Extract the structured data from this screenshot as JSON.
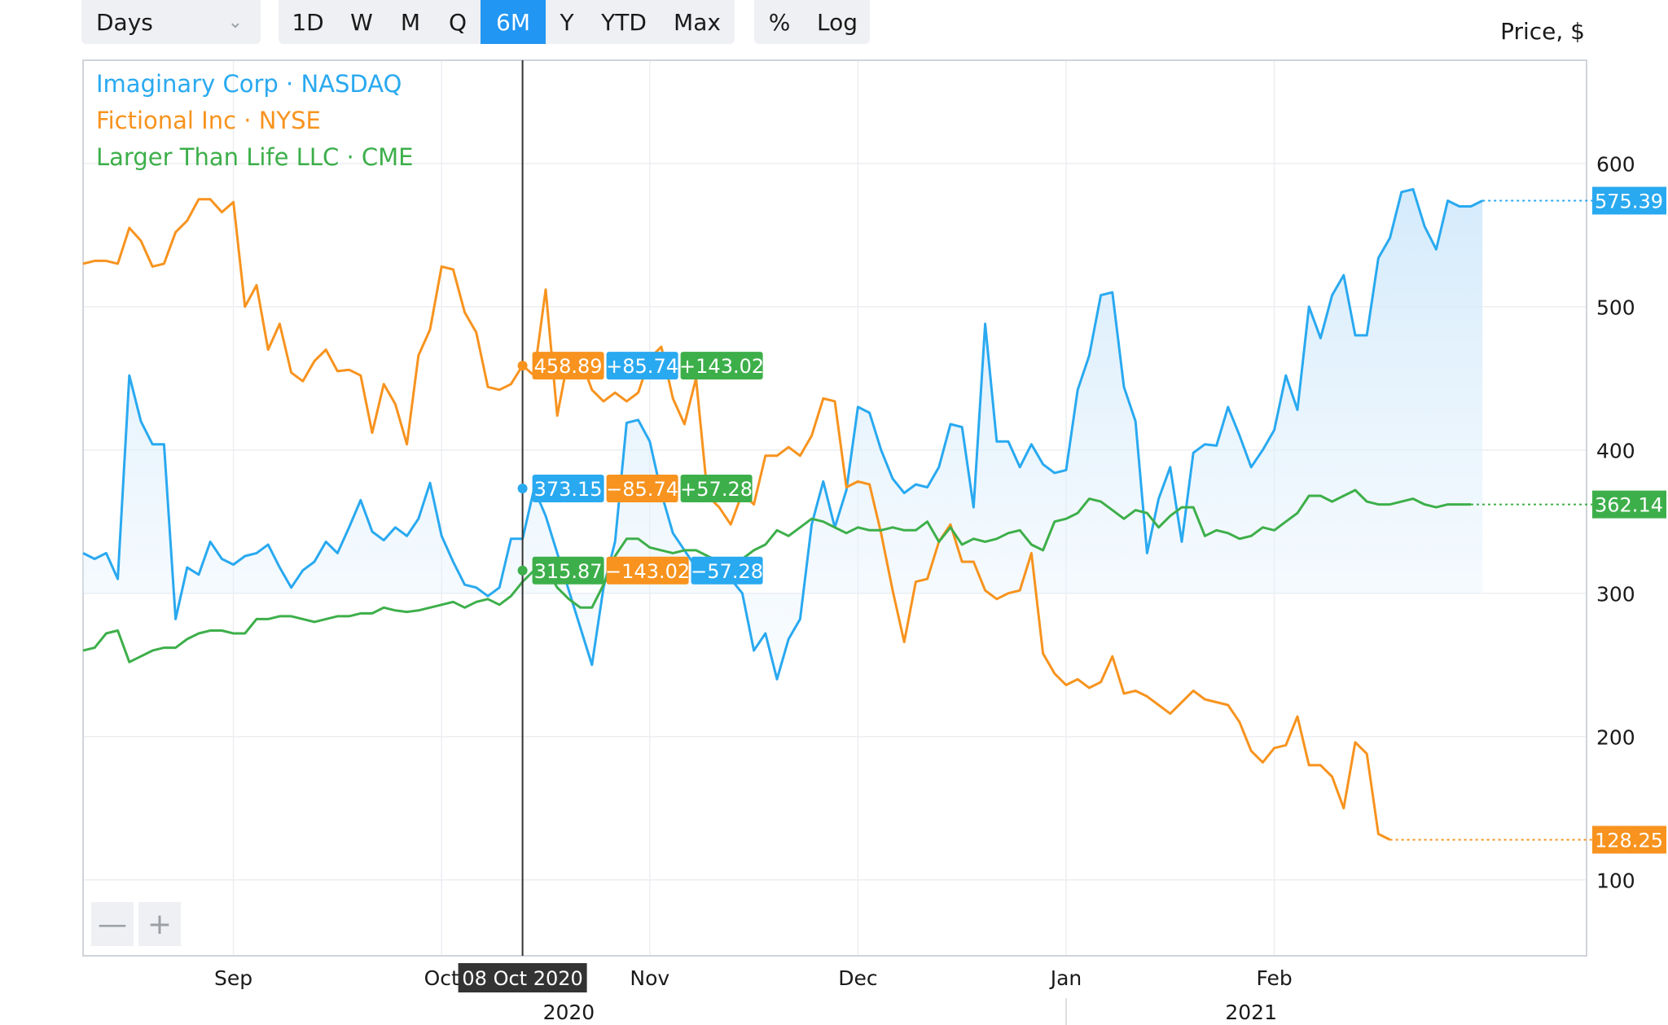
{
  "toolbar": {
    "interval": "Days",
    "ranges": [
      "1D",
      "W",
      "M",
      "Q",
      "6M",
      "Y",
      "YTD",
      "Max"
    ],
    "active_range": "6M",
    "scale_options": [
      "%",
      "Log"
    ]
  },
  "price_axis_label": "Price, $",
  "zoom": {
    "minus": "—",
    "plus": "+"
  },
  "crosshair": {
    "date_label": "08 Oct 2020"
  },
  "tooltip_rows": [
    {
      "value": "458.89",
      "diffs": [
        "+85.74",
        "+143.02"
      ],
      "colors": [
        "#f7931e",
        "#29a9f0",
        "#3daf4a"
      ]
    },
    {
      "value": "373.15",
      "diffs": [
        "−85.74",
        "+57.28"
      ],
      "colors": [
        "#29a9f0",
        "#f7931e",
        "#3daf4a"
      ]
    },
    {
      "value": "315.87",
      "diffs": [
        "−143.02",
        "−57.28"
      ],
      "colors": [
        "#3daf4a",
        "#f7931e",
        "#29a9f0"
      ]
    }
  ],
  "last_values": [
    {
      "series": "Imaginary Corp · NASDAQ",
      "label": "575.39",
      "color": "#29a9f0"
    },
    {
      "series": "Larger Than Life LLC · CME",
      "label": "362.14",
      "color": "#3daf4a"
    },
    {
      "series": "Fictional Inc · NYSE",
      "label": "128.25",
      "color": "#f7931e"
    }
  ],
  "chart_data": {
    "type": "line",
    "title": "",
    "xlabel": "",
    "ylabel": "Price, $",
    "ylim": [
      47,
      672
    ],
    "y_ticks": [
      100,
      200,
      300,
      400,
      500,
      600
    ],
    "x_ticks": [
      "Sep",
      "Oct",
      "Nov",
      "Dec",
      "Jan",
      "Feb"
    ],
    "years": [
      "2020",
      "2021"
    ],
    "grid": true,
    "legend": "top-left",
    "x_range": [
      0,
      130
    ],
    "x_tick_positions": [
      13,
      31,
      49,
      67,
      85,
      103
    ],
    "year_boundary": 85,
    "year_centers": [
      42,
      101
    ],
    "crosshair_x": 38,
    "series": [
      {
        "name": "Imaginary Corp · NASDAQ",
        "color": "#29a9f0",
        "fill": true,
        "values": [
          328,
          324,
          328,
          310,
          452,
          420,
          404,
          404,
          282,
          318,
          313,
          336,
          324,
          320,
          326,
          328,
          334,
          318,
          304,
          316,
          322,
          336,
          328,
          346,
          365,
          343,
          337,
          346,
          340,
          352,
          377,
          340,
          322,
          306,
          304,
          298,
          304,
          338,
          338,
          373,
          354,
          328,
          302,
          276,
          250,
          304,
          336,
          419,
          421,
          406,
          370,
          342,
          330,
          318,
          322,
          316,
          310,
          300,
          260,
          272,
          240,
          268,
          282,
          348,
          378,
          346,
          372,
          430,
          426,
          400,
          380,
          370,
          376,
          374,
          388,
          418,
          416,
          360,
          488,
          406,
          406,
          388,
          404,
          390,
          384,
          386,
          442,
          466,
          508,
          510,
          444,
          420,
          328,
          366,
          388,
          336,
          398,
          404,
          403,
          430,
          410,
          388,
          400,
          414,
          452,
          428,
          500,
          478,
          508,
          522,
          480,
          480,
          534,
          548,
          580,
          582,
          556,
          540,
          574,
          570,
          570,
          574
        ]
      },
      {
        "name": "Fictional Inc · NYSE",
        "color": "#f7931e",
        "fill": false,
        "values": [
          530,
          532,
          532,
          530,
          555,
          546,
          528,
          530,
          552,
          560,
          575,
          575,
          566,
          573,
          500,
          515,
          470,
          488,
          454,
          448,
          462,
          470,
          455,
          456,
          452,
          412,
          446,
          432,
          404,
          466,
          484,
          528,
          526,
          496,
          482,
          444,
          442,
          446,
          459,
          452,
          512,
          424,
          466,
          464,
          442,
          434,
          440,
          434,
          440,
          464,
          472,
          436,
          418,
          450,
          368,
          360,
          348,
          370,
          362,
          396,
          396,
          402,
          396,
          410,
          436,
          434,
          374,
          378,
          376,
          342,
          302,
          266,
          308,
          310,
          336,
          348,
          322,
          322,
          302,
          296,
          300,
          302,
          328,
          258,
          244,
          236,
          240,
          234,
          238,
          256,
          230,
          232,
          228,
          222,
          216,
          224,
          232,
          226,
          224,
          222,
          210,
          190,
          182,
          192,
          194,
          214,
          180,
          180,
          172,
          150,
          196,
          188,
          132,
          128
        ],
        "x_offset": 0
      },
      {
        "name": "Larger Than Life LLC · CME",
        "color": "#3daf4a",
        "fill": false,
        "values": [
          260,
          262,
          272,
          274,
          252,
          256,
          260,
          262,
          262,
          268,
          272,
          274,
          274,
          272,
          272,
          282,
          282,
          284,
          284,
          282,
          280,
          282,
          284,
          284,
          286,
          286,
          290,
          288,
          287,
          288,
          290,
          292,
          294,
          290,
          294,
          296,
          292,
          298,
          308,
          316,
          318,
          304,
          296,
          290,
          290,
          306,
          326,
          338,
          338,
          332,
          330,
          328,
          330,
          330,
          326,
          322,
          320,
          324,
          330,
          334,
          344,
          340,
          346,
          352,
          350,
          346,
          342,
          346,
          344,
          344,
          346,
          344,
          344,
          350,
          336,
          346,
          334,
          338,
          336,
          338,
          342,
          344,
          334,
          330,
          350,
          352,
          356,
          366,
          364,
          358,
          352,
          358,
          356,
          346,
          354,
          360,
          360,
          340,
          344,
          342,
          338,
          340,
          346,
          344,
          350,
          356,
          368,
          368,
          364,
          368,
          372,
          364,
          362,
          362,
          364,
          366,
          362,
          360,
          362,
          362,
          362
        ]
      }
    ]
  }
}
